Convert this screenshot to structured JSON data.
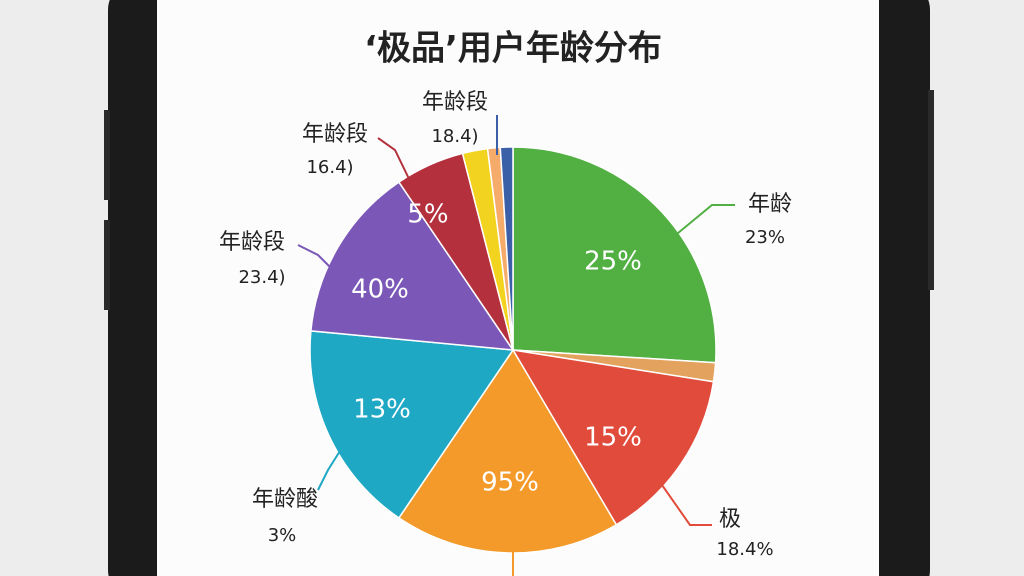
{
  "chart_data": {
    "type": "pie",
    "title": "‘极品’用户年龄分布",
    "categories": [
      null,
      null,
      null,
      null,
      null,
      null,
      null,
      null,
      null,
      null
    ],
    "values": [
      26,
      1.5,
      14,
      18,
      17,
      14,
      5.5,
      2,
      1,
      1
    ],
    "colors": [
      "#52b043",
      "#e3a35e",
      "#e14b3b",
      "#f39a2a",
      "#1fa8c4",
      "#7b58b8",
      "#b3303c",
      "#f2d320",
      "#f5ab6a",
      "#3b60a8"
    ],
    "annotations": [
      "25%",
      "15%",
      "95%",
      "13%",
      "40%",
      "5%",
      "年龄段",
      "18.4)",
      "年龄段",
      "16.4)",
      "年龄段",
      "23.4)",
      "年龄酸",
      "3%",
      "年龄",
      "23%",
      "极",
      "18.4%"
    ]
  }
}
